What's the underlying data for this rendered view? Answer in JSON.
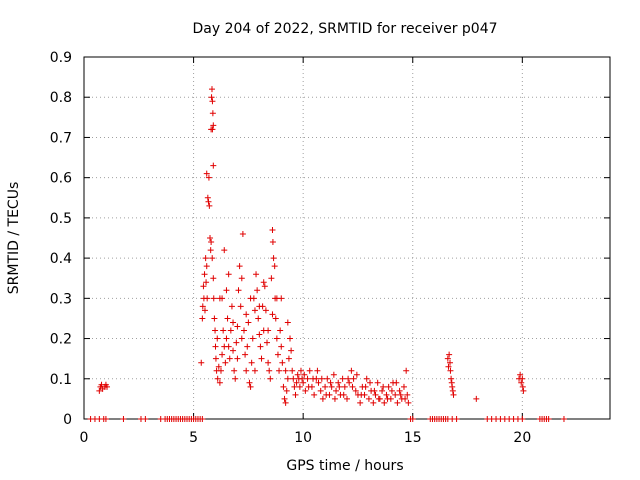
{
  "chart_data": {
    "type": "scatter",
    "title": "Day 204 of 2022, SRMTID for receiver p047",
    "xlabel": "GPS time / hours",
    "ylabel": "SRMTID / TECUs",
    "xlim": [
      0,
      24
    ],
    "ylim": [
      0,
      0.9
    ],
    "xticks": [
      0,
      5,
      10,
      15,
      20
    ],
    "xtick_labels": [
      "0",
      "5",
      "10",
      "15",
      "20"
    ],
    "yticks": [
      0,
      0.1,
      0.2,
      0.3,
      0.4,
      0.5,
      0.6,
      0.7,
      0.8,
      0.9
    ],
    "ytick_labels": [
      "0",
      "0.1",
      "0.2",
      "0.3",
      "0.4",
      "0.5",
      "0.6",
      "0.7",
      "0.8",
      "0.9"
    ],
    "grid": true,
    "marker": "+",
    "color": "#e00000",
    "series": [
      {
        "name": "SRMTID",
        "points": [
          [
            0.3,
            0
          ],
          [
            0.5,
            0
          ],
          [
            0.7,
            0
          ],
          [
            0.9,
            0
          ],
          [
            1.0,
            0
          ],
          [
            0.7,
            0.07
          ],
          [
            0.75,
            0.08
          ],
          [
            0.8,
            0.085
          ],
          [
            0.85,
            0.075
          ],
          [
            0.95,
            0.08
          ],
          [
            1.0,
            0.085
          ],
          [
            1.05,
            0.08
          ],
          [
            1.8,
            0
          ],
          [
            2.6,
            0
          ],
          [
            2.8,
            0
          ],
          [
            3.5,
            0
          ],
          [
            3.7,
            0
          ],
          [
            3.8,
            0
          ],
          [
            3.9,
            0
          ],
          [
            4.0,
            0
          ],
          [
            4.1,
            0
          ],
          [
            4.2,
            0
          ],
          [
            4.3,
            0
          ],
          [
            4.4,
            0
          ],
          [
            4.5,
            0
          ],
          [
            4.6,
            0
          ],
          [
            4.7,
            0
          ],
          [
            4.8,
            0
          ],
          [
            4.9,
            0
          ],
          [
            5.0,
            0
          ],
          [
            5.1,
            0
          ],
          [
            5.2,
            0
          ],
          [
            5.3,
            0
          ],
          [
            5.4,
            0
          ],
          [
            5.35,
            0.14
          ],
          [
            5.4,
            0.25
          ],
          [
            5.42,
            0.28
          ],
          [
            5.45,
            0.33
          ],
          [
            5.47,
            0.3
          ],
          [
            5.5,
            0.36
          ],
          [
            5.52,
            0.27
          ],
          [
            5.55,
            0.4
          ],
          [
            5.57,
            0.34
          ],
          [
            5.6,
            0.38
          ],
          [
            5.62,
            0.3
          ],
          [
            5.6,
            0.61
          ],
          [
            5.65,
            0.55
          ],
          [
            5.68,
            0.54
          ],
          [
            5.7,
            0.6
          ],
          [
            5.72,
            0.53
          ],
          [
            5.75,
            0.45
          ],
          [
            5.78,
            0.42
          ],
          [
            5.8,
            0.44
          ],
          [
            5.8,
            0.72
          ],
          [
            5.82,
            0.8
          ],
          [
            5.84,
            0.82
          ],
          [
            5.86,
            0.79
          ],
          [
            5.88,
            0.76
          ],
          [
            5.9,
            0.73
          ],
          [
            5.86,
            0.72
          ],
          [
            5.9,
            0.63
          ],
          [
            5.85,
            0.4
          ],
          [
            5.9,
            0.35
          ],
          [
            5.92,
            0.3
          ],
          [
            5.95,
            0.25
          ],
          [
            5.98,
            0.22
          ],
          [
            6.0,
            0.18
          ],
          [
            6.02,
            0.15
          ],
          [
            6.05,
            0.12
          ],
          [
            6.08,
            0.2
          ],
          [
            6.1,
            0.1
          ],
          [
            6.15,
            0.13
          ],
          [
            6.2,
            0.09
          ],
          [
            6.25,
            0.12
          ],
          [
            6.3,
            0.16
          ],
          [
            6.35,
            0.22
          ],
          [
            6.4,
            0.18
          ],
          [
            6.45,
            0.14
          ],
          [
            6.5,
            0.2
          ],
          [
            6.3,
            0.3
          ],
          [
            6.4,
            0.42
          ],
          [
            6.5,
            0.32
          ],
          [
            6.55,
            0.25
          ],
          [
            6.6,
            0.18
          ],
          [
            6.65,
            0.15
          ],
          [
            6.7,
            0.22
          ],
          [
            6.75,
            0.28
          ],
          [
            6.8,
            0.17
          ],
          [
            6.85,
            0.12
          ],
          [
            6.9,
            0.1
          ],
          [
            6.95,
            0.19
          ],
          [
            7.0,
            0.23
          ],
          [
            7.05,
            0.32
          ],
          [
            7.1,
            0.38
          ],
          [
            7.15,
            0.28
          ],
          [
            7.2,
            0.35
          ],
          [
            7.25,
            0.46
          ],
          [
            7.3,
            0.22
          ],
          [
            7.35,
            0.16
          ],
          [
            7.4,
            0.12
          ],
          [
            7.45,
            0.18
          ],
          [
            7.5,
            0.24
          ],
          [
            7.55,
            0.09
          ],
          [
            7.6,
            0.08
          ],
          [
            7.65,
            0.14
          ],
          [
            7.7,
            0.2
          ],
          [
            7.75,
            0.3
          ],
          [
            7.8,
            0.27
          ],
          [
            7.85,
            0.36
          ],
          [
            7.9,
            0.32
          ],
          [
            7.95,
            0.25
          ],
          [
            8.0,
            0.21
          ],
          [
            8.05,
            0.18
          ],
          [
            8.1,
            0.15
          ],
          [
            8.15,
            0.28
          ],
          [
            8.2,
            0.22
          ],
          [
            8.25,
            0.33
          ],
          [
            8.3,
            0.27
          ],
          [
            8.35,
            0.19
          ],
          [
            8.4,
            0.14
          ],
          [
            8.45,
            0.12
          ],
          [
            8.5,
            0.1
          ],
          [
            8.55,
            0.35
          ],
          [
            8.6,
            0.47
          ],
          [
            8.62,
            0.44
          ],
          [
            8.65,
            0.4
          ],
          [
            8.7,
            0.38
          ],
          [
            8.72,
            0.3
          ],
          [
            8.75,
            0.25
          ],
          [
            8.8,
            0.2
          ],
          [
            8.85,
            0.16
          ],
          [
            8.9,
            0.12
          ],
          [
            8.95,
            0.22
          ],
          [
            9.0,
            0.18
          ],
          [
            9.05,
            0.14
          ],
          [
            9.1,
            0.08
          ],
          [
            9.15,
            0.05
          ],
          [
            9.2,
            0.04
          ],
          [
            9.25,
            0.07
          ],
          [
            9.3,
            0.1
          ],
          [
            9.35,
            0.15
          ],
          [
            9.4,
            0.2
          ],
          [
            9.45,
            0.17
          ],
          [
            9.5,
            0.12
          ],
          [
            9.55,
            0.1
          ],
          [
            9.6,
            0.08
          ],
          [
            9.65,
            0.06
          ],
          [
            9.7,
            0.09
          ],
          [
            9.75,
            0.11
          ],
          [
            9.8,
            0.1
          ],
          [
            9.85,
            0.08
          ],
          [
            9.9,
            0.12
          ],
          [
            9.95,
            0.1
          ],
          [
            10.0,
            0.09
          ],
          [
            10.1,
            0.07
          ],
          [
            10.2,
            0.1
          ],
          [
            10.3,
            0.12
          ],
          [
            10.4,
            0.08
          ],
          [
            10.5,
            0.06
          ],
          [
            10.6,
            0.1
          ],
          [
            10.7,
            0.09
          ],
          [
            10.8,
            0.07
          ],
          [
            10.9,
            0.05
          ],
          [
            11.0,
            0.08
          ],
          [
            11.1,
            0.1
          ],
          [
            11.2,
            0.06
          ],
          [
            11.3,
            0.08
          ],
          [
            11.4,
            0.11
          ],
          [
            11.5,
            0.07
          ],
          [
            11.6,
            0.09
          ],
          [
            11.7,
            0.06
          ],
          [
            11.8,
            0.1
          ],
          [
            11.9,
            0.08
          ],
          [
            12.0,
            0.05
          ],
          [
            12.1,
            0.09
          ],
          [
            12.2,
            0.12
          ],
          [
            12.3,
            0.1
          ],
          [
            12.4,
            0.07
          ],
          [
            12.5,
            0.06
          ],
          [
            12.6,
            0.04
          ],
          [
            12.7,
            0.08
          ],
          [
            12.8,
            0.06
          ],
          [
            12.9,
            0.1
          ],
          [
            13.0,
            0.05
          ],
          [
            13.1,
            0.07
          ],
          [
            13.2,
            0.04
          ],
          [
            13.3,
            0.06
          ],
          [
            13.4,
            0.09
          ],
          [
            13.5,
            0.05
          ],
          [
            13.6,
            0.07
          ],
          [
            13.7,
            0.04
          ],
          [
            13.8,
            0.06
          ],
          [
            13.9,
            0.08
          ],
          [
            14.0,
            0.05
          ],
          [
            14.1,
            0.09
          ],
          [
            14.2,
            0.06
          ],
          [
            14.3,
            0.04
          ],
          [
            14.4,
            0.07
          ],
          [
            14.5,
            0.05
          ],
          [
            14.6,
            0.08
          ],
          [
            14.7,
            0.12
          ],
          [
            14.75,
            0.06
          ],
          [
            14.8,
            0.04
          ],
          [
            6.2,
            0.3
          ],
          [
            6.6,
            0.36
          ],
          [
            7.0,
            0.15
          ],
          [
            7.4,
            0.26
          ],
          [
            7.8,
            0.12
          ],
          [
            8.2,
            0.34
          ],
          [
            8.6,
            0.26
          ],
          [
            9.0,
            0.3
          ],
          [
            9.3,
            0.24
          ],
          [
            6.8,
            0.24
          ],
          [
            7.2,
            0.2
          ],
          [
            7.6,
            0.3
          ],
          [
            8.0,
            0.28
          ],
          [
            8.4,
            0.22
          ],
          [
            8.8,
            0.3
          ],
          [
            9.2,
            0.12
          ],
          [
            10.05,
            0.11
          ],
          [
            10.25,
            0.08
          ],
          [
            10.45,
            0.1
          ],
          [
            10.65,
            0.12
          ],
          [
            10.85,
            0.1
          ],
          [
            11.05,
            0.06
          ],
          [
            11.25,
            0.09
          ],
          [
            11.45,
            0.05
          ],
          [
            11.65,
            0.08
          ],
          [
            11.85,
            0.06
          ],
          [
            12.05,
            0.1
          ],
          [
            12.25,
            0.08
          ],
          [
            12.45,
            0.11
          ],
          [
            12.65,
            0.06
          ],
          [
            12.85,
            0.08
          ],
          [
            13.05,
            0.09
          ],
          [
            13.25,
            0.07
          ],
          [
            13.45,
            0.05
          ],
          [
            13.65,
            0.08
          ],
          [
            13.85,
            0.05
          ],
          [
            14.05,
            0.07
          ],
          [
            14.25,
            0.09
          ],
          [
            14.45,
            0.06
          ],
          [
            14.65,
            0.05
          ],
          [
            14.9,
            0
          ],
          [
            15.0,
            0
          ],
          [
            15.8,
            0
          ],
          [
            15.9,
            0
          ],
          [
            16.0,
            0
          ],
          [
            16.1,
            0
          ],
          [
            16.2,
            0
          ],
          [
            16.3,
            0
          ],
          [
            16.4,
            0
          ],
          [
            16.5,
            0
          ],
          [
            16.6,
            0
          ],
          [
            16.8,
            0
          ],
          [
            17.0,
            0
          ],
          [
            16.6,
            0.15
          ],
          [
            16.63,
            0.13
          ],
          [
            16.66,
            0.16
          ],
          [
            16.7,
            0.14
          ],
          [
            16.72,
            0.12
          ],
          [
            16.75,
            0.1
          ],
          [
            16.78,
            0.09
          ],
          [
            16.8,
            0.08
          ],
          [
            16.83,
            0.07
          ],
          [
            16.86,
            0.06
          ],
          [
            17.9,
            0.05
          ],
          [
            18.4,
            0
          ],
          [
            18.6,
            0
          ],
          [
            18.8,
            0
          ],
          [
            19.0,
            0
          ],
          [
            19.2,
            0
          ],
          [
            19.4,
            0
          ],
          [
            19.6,
            0
          ],
          [
            19.8,
            0
          ],
          [
            20.0,
            0
          ],
          [
            19.85,
            0.1
          ],
          [
            19.9,
            0.11
          ],
          [
            19.95,
            0.09
          ],
          [
            20.0,
            0.1
          ],
          [
            20.02,
            0.08
          ],
          [
            20.05,
            0.07
          ],
          [
            20.8,
            0
          ],
          [
            20.9,
            0
          ],
          [
            21.0,
            0
          ],
          [
            21.1,
            0
          ],
          [
            21.2,
            0
          ],
          [
            21.9,
            0
          ]
        ]
      }
    ]
  }
}
